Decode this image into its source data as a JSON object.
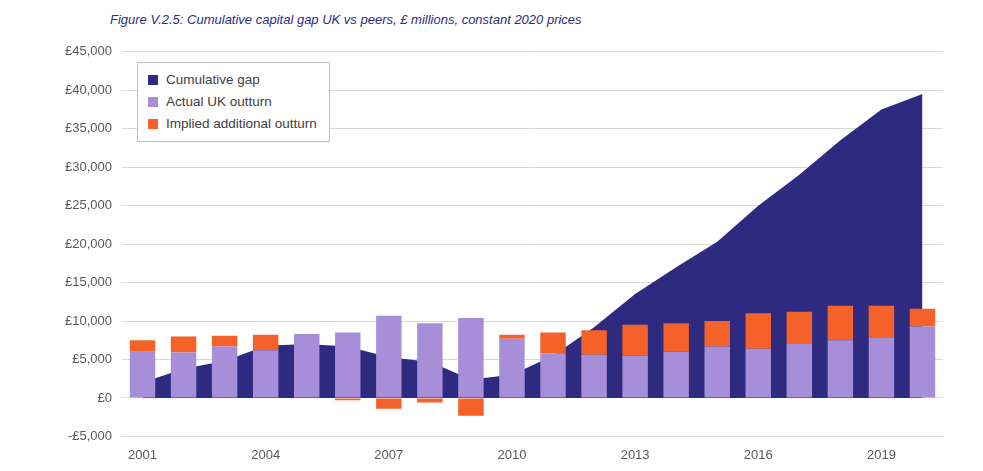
{
  "chart_data": {
    "type": "bar",
    "title": "Figure V.2.5: Cumulative capital gap UK vs peers, £ millions, constant 2020 prices",
    "categories": [
      "2001",
      null,
      null,
      "2004",
      null,
      null,
      "2007",
      null,
      null,
      "2010",
      null,
      null,
      "2013",
      null,
      null,
      "2016",
      null,
      null,
      "2019",
      null
    ],
    "series": [
      {
        "name": "Cumulative gap",
        "type": "area",
        "color": "#2e2a80",
        "values": [
          2000,
          3800,
          4800,
          6800,
          7000,
          6700,
          5300,
          4700,
          2400,
          3000,
          5500,
          9200,
          13500,
          17000,
          20300,
          25000,
          29000,
          33500,
          37500,
          39500
        ]
      },
      {
        "name": "Actual UK outturn",
        "type": "bar",
        "color": "#a68fd8",
        "values": [
          6000,
          5900,
          6700,
          6200,
          8300,
          8500,
          10700,
          9700,
          10400,
          7700,
          5800,
          5600,
          5500,
          6000,
          6700,
          6400,
          7000,
          7500,
          7800,
          9300
        ]
      },
      {
        "name": "Implied additional outturn",
        "type": "bar",
        "color": "#f4622a",
        "values": [
          1500,
          2100,
          1400,
          2000,
          0,
          -300,
          -1400,
          -600,
          -2300,
          500,
          2700,
          3200,
          4000,
          3700,
          3300,
          4600,
          4200,
          4500,
          4200,
          2300
        ]
      }
    ],
    "stacked": true,
    "ylim": [
      -5000,
      45000
    ],
    "yticks": [
      {
        "value": -5000,
        "label": "-£5,000"
      },
      {
        "value": 0,
        "label": "£0"
      },
      {
        "value": 5000,
        "label": "£5,000"
      },
      {
        "value": 10000,
        "label": "£10,000"
      },
      {
        "value": 15000,
        "label": "£15,000"
      },
      {
        "value": 20000,
        "label": "£20,000"
      },
      {
        "value": 25000,
        "label": "£25,000"
      },
      {
        "value": 30000,
        "label": "£30,000"
      },
      {
        "value": 35000,
        "label": "£35,000"
      },
      {
        "value": 40000,
        "label": "£40,000"
      },
      {
        "value": 45000,
        "label": "£45,000"
      }
    ],
    "grid": true,
    "legend": "upper left"
  }
}
